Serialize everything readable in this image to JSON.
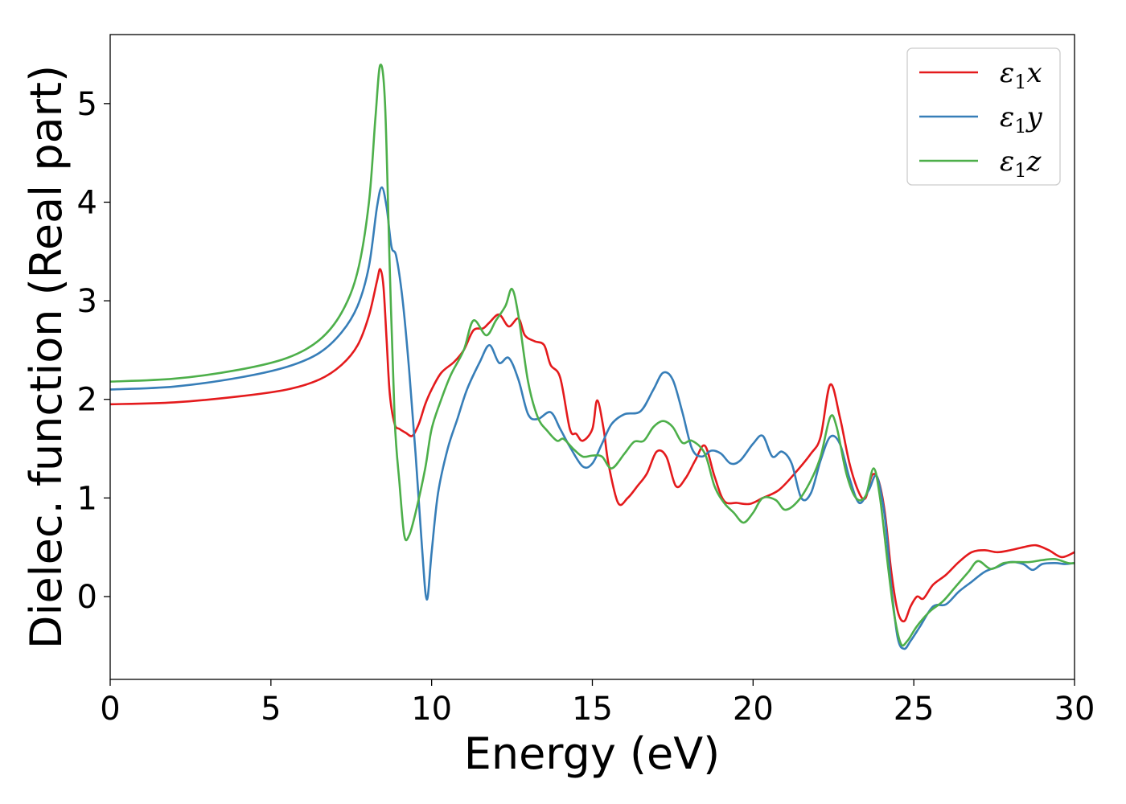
{
  "chart_data": {
    "type": "line",
    "title": "",
    "xlabel": "Energy (eV)",
    "ylabel": "Dielec. function (Real part)",
    "xlim": [
      0,
      30
    ],
    "ylim": [
      -0.84,
      5.7
    ],
    "xticks": [
      0,
      5,
      10,
      15,
      20,
      25,
      30
    ],
    "yticks": [
      0,
      1,
      2,
      3,
      4,
      5
    ],
    "grid": false,
    "legend_position": "top-right",
    "series": [
      {
        "name": "ε1x",
        "symbol": "ε",
        "subscript": "1",
        "suffix": "x",
        "color": "#e41a1c",
        "points": [
          [
            0,
            1.95
          ],
          [
            2,
            1.97
          ],
          [
            4,
            2.03
          ],
          [
            5.5,
            2.1
          ],
          [
            6.5,
            2.2
          ],
          [
            7.2,
            2.35
          ],
          [
            7.7,
            2.55
          ],
          [
            8.05,
            2.85
          ],
          [
            8.3,
            3.2
          ],
          [
            8.4,
            3.32
          ],
          [
            8.5,
            3.15
          ],
          [
            8.6,
            2.6
          ],
          [
            8.7,
            2.05
          ],
          [
            8.85,
            1.75
          ],
          [
            9.0,
            1.7
          ],
          [
            9.2,
            1.66
          ],
          [
            9.4,
            1.63
          ],
          [
            9.6,
            1.75
          ],
          [
            9.8,
            1.95
          ],
          [
            10.0,
            2.1
          ],
          [
            10.3,
            2.27
          ],
          [
            10.7,
            2.38
          ],
          [
            11.0,
            2.5
          ],
          [
            11.3,
            2.7
          ],
          [
            11.6,
            2.72
          ],
          [
            11.8,
            2.78
          ],
          [
            12.1,
            2.86
          ],
          [
            12.4,
            2.74
          ],
          [
            12.7,
            2.82
          ],
          [
            12.9,
            2.65
          ],
          [
            13.2,
            2.59
          ],
          [
            13.5,
            2.55
          ],
          [
            13.7,
            2.35
          ],
          [
            14.0,
            2.22
          ],
          [
            14.3,
            1.7
          ],
          [
            14.5,
            1.65
          ],
          [
            14.7,
            1.58
          ],
          [
            15.0,
            1.7
          ],
          [
            15.15,
            1.99
          ],
          [
            15.35,
            1.7
          ],
          [
            15.5,
            1.35
          ],
          [
            15.8,
            0.95
          ],
          [
            16.1,
            1.0
          ],
          [
            16.4,
            1.12
          ],
          [
            16.7,
            1.25
          ],
          [
            17.0,
            1.47
          ],
          [
            17.3,
            1.42
          ],
          [
            17.6,
            1.12
          ],
          [
            17.9,
            1.2
          ],
          [
            18.2,
            1.38
          ],
          [
            18.5,
            1.53
          ],
          [
            18.8,
            1.22
          ],
          [
            19.1,
            0.97
          ],
          [
            19.5,
            0.95
          ],
          [
            19.9,
            0.94
          ],
          [
            20.3,
            1.0
          ],
          [
            20.8,
            1.08
          ],
          [
            21.3,
            1.25
          ],
          [
            21.8,
            1.45
          ],
          [
            22.1,
            1.62
          ],
          [
            22.4,
            2.15
          ],
          [
            22.7,
            1.82
          ],
          [
            23.0,
            1.35
          ],
          [
            23.3,
            1.05
          ],
          [
            23.5,
            1.0
          ],
          [
            23.7,
            1.23
          ],
          [
            23.9,
            1.18
          ],
          [
            24.1,
            0.85
          ],
          [
            24.3,
            0.25
          ],
          [
            24.5,
            -0.15
          ],
          [
            24.7,
            -0.25
          ],
          [
            24.9,
            -0.1
          ],
          [
            25.1,
            0.0
          ],
          [
            25.3,
            -0.02
          ],
          [
            25.6,
            0.12
          ],
          [
            26.0,
            0.22
          ],
          [
            26.4,
            0.35
          ],
          [
            26.8,
            0.45
          ],
          [
            27.2,
            0.47
          ],
          [
            27.6,
            0.45
          ],
          [
            28.0,
            0.47
          ],
          [
            28.4,
            0.5
          ],
          [
            28.8,
            0.52
          ],
          [
            29.2,
            0.47
          ],
          [
            29.6,
            0.4
          ],
          [
            30,
            0.45
          ]
        ]
      },
      {
        "name": "ε1y",
        "symbol": "ε",
        "subscript": "1",
        "suffix": "y",
        "color": "#377eb8",
        "points": [
          [
            0,
            2.1
          ],
          [
            2,
            2.13
          ],
          [
            4,
            2.22
          ],
          [
            5.5,
            2.33
          ],
          [
            6.5,
            2.47
          ],
          [
            7.2,
            2.68
          ],
          [
            7.7,
            2.95
          ],
          [
            8.05,
            3.35
          ],
          [
            8.3,
            3.95
          ],
          [
            8.45,
            4.15
          ],
          [
            8.6,
            3.95
          ],
          [
            8.75,
            3.55
          ],
          [
            8.9,
            3.45
          ],
          [
            9.1,
            3.0
          ],
          [
            9.3,
            2.3
          ],
          [
            9.5,
            1.45
          ],
          [
            9.7,
            0.5
          ],
          [
            9.85,
            -0.03
          ],
          [
            10.0,
            0.45
          ],
          [
            10.2,
            1.05
          ],
          [
            10.5,
            1.5
          ],
          [
            10.8,
            1.8
          ],
          [
            11.1,
            2.1
          ],
          [
            11.5,
            2.38
          ],
          [
            11.8,
            2.55
          ],
          [
            12.1,
            2.37
          ],
          [
            12.4,
            2.42
          ],
          [
            12.7,
            2.2
          ],
          [
            13.0,
            1.85
          ],
          [
            13.3,
            1.8
          ],
          [
            13.7,
            1.87
          ],
          [
            14.0,
            1.7
          ],
          [
            14.3,
            1.52
          ],
          [
            14.7,
            1.32
          ],
          [
            15.0,
            1.35
          ],
          [
            15.3,
            1.55
          ],
          [
            15.6,
            1.75
          ],
          [
            16.0,
            1.85
          ],
          [
            16.5,
            1.88
          ],
          [
            16.9,
            2.1
          ],
          [
            17.2,
            2.27
          ],
          [
            17.5,
            2.2
          ],
          [
            17.8,
            1.87
          ],
          [
            18.1,
            1.5
          ],
          [
            18.4,
            1.42
          ],
          [
            18.7,
            1.48
          ],
          [
            19.0,
            1.45
          ],
          [
            19.3,
            1.35
          ],
          [
            19.6,
            1.38
          ],
          [
            20.0,
            1.55
          ],
          [
            20.3,
            1.63
          ],
          [
            20.6,
            1.42
          ],
          [
            20.9,
            1.47
          ],
          [
            21.2,
            1.35
          ],
          [
            21.5,
            1.0
          ],
          [
            21.8,
            1.05
          ],
          [
            22.1,
            1.38
          ],
          [
            22.4,
            1.62
          ],
          [
            22.7,
            1.55
          ],
          [
            23.0,
            1.2
          ],
          [
            23.3,
            0.95
          ],
          [
            23.6,
            1.08
          ],
          [
            23.85,
            1.22
          ],
          [
            24.1,
            0.8
          ],
          [
            24.3,
            0.1
          ],
          [
            24.5,
            -0.42
          ],
          [
            24.7,
            -0.53
          ],
          [
            24.9,
            -0.45
          ],
          [
            25.2,
            -0.3
          ],
          [
            25.6,
            -0.1
          ],
          [
            26.0,
            -0.08
          ],
          [
            26.4,
            0.05
          ],
          [
            26.8,
            0.15
          ],
          [
            27.2,
            0.25
          ],
          [
            27.6,
            0.3
          ],
          [
            28.0,
            0.35
          ],
          [
            28.4,
            0.33
          ],
          [
            28.7,
            0.27
          ],
          [
            29.0,
            0.33
          ],
          [
            29.4,
            0.34
          ],
          [
            29.7,
            0.33
          ],
          [
            30,
            0.34
          ]
        ]
      },
      {
        "name": "ε1z",
        "symbol": "ε",
        "subscript": "1",
        "suffix": "z",
        "color": "#4daf4a",
        "points": [
          [
            0,
            2.18
          ],
          [
            2,
            2.21
          ],
          [
            4,
            2.3
          ],
          [
            5.5,
            2.42
          ],
          [
            6.5,
            2.6
          ],
          [
            7.2,
            2.88
          ],
          [
            7.7,
            3.3
          ],
          [
            8.05,
            4.0
          ],
          [
            8.25,
            4.85
          ],
          [
            8.4,
            5.39
          ],
          [
            8.55,
            5.0
          ],
          [
            8.7,
            3.3
          ],
          [
            8.85,
            1.8
          ],
          [
            9.0,
            1.15
          ],
          [
            9.15,
            0.62
          ],
          [
            9.3,
            0.62
          ],
          [
            9.5,
            0.85
          ],
          [
            9.8,
            1.3
          ],
          [
            10.0,
            1.7
          ],
          [
            10.3,
            2.0
          ],
          [
            10.6,
            2.25
          ],
          [
            11.0,
            2.5
          ],
          [
            11.3,
            2.8
          ],
          [
            11.7,
            2.65
          ],
          [
            12.0,
            2.8
          ],
          [
            12.3,
            2.95
          ],
          [
            12.5,
            3.12
          ],
          [
            12.7,
            2.85
          ],
          [
            13.0,
            2.18
          ],
          [
            13.3,
            1.82
          ],
          [
            13.6,
            1.68
          ],
          [
            13.9,
            1.58
          ],
          [
            14.1,
            1.6
          ],
          [
            14.4,
            1.5
          ],
          [
            14.7,
            1.42
          ],
          [
            15.0,
            1.43
          ],
          [
            15.3,
            1.42
          ],
          [
            15.6,
            1.3
          ],
          [
            16.0,
            1.45
          ],
          [
            16.3,
            1.57
          ],
          [
            16.6,
            1.58
          ],
          [
            16.9,
            1.72
          ],
          [
            17.2,
            1.78
          ],
          [
            17.5,
            1.72
          ],
          [
            17.8,
            1.56
          ],
          [
            18.1,
            1.58
          ],
          [
            18.5,
            1.45
          ],
          [
            18.8,
            1.12
          ],
          [
            19.1,
            0.95
          ],
          [
            19.4,
            0.85
          ],
          [
            19.7,
            0.75
          ],
          [
            20.0,
            0.85
          ],
          [
            20.3,
            1.0
          ],
          [
            20.7,
            0.98
          ],
          [
            21.0,
            0.88
          ],
          [
            21.4,
            0.97
          ],
          [
            21.8,
            1.18
          ],
          [
            22.1,
            1.42
          ],
          [
            22.4,
            1.82
          ],
          [
            22.6,
            1.72
          ],
          [
            22.9,
            1.25
          ],
          [
            23.2,
            1.0
          ],
          [
            23.5,
            1.02
          ],
          [
            23.75,
            1.3
          ],
          [
            23.95,
            1.0
          ],
          [
            24.2,
            0.3
          ],
          [
            24.4,
            -0.2
          ],
          [
            24.6,
            -0.48
          ],
          [
            24.8,
            -0.45
          ],
          [
            25.1,
            -0.3
          ],
          [
            25.5,
            -0.15
          ],
          [
            25.9,
            -0.05
          ],
          [
            26.3,
            0.1
          ],
          [
            26.7,
            0.25
          ],
          [
            27.0,
            0.36
          ],
          [
            27.4,
            0.28
          ],
          [
            27.8,
            0.34
          ],
          [
            28.2,
            0.35
          ],
          [
            28.6,
            0.35
          ],
          [
            29.0,
            0.37
          ],
          [
            29.4,
            0.38
          ],
          [
            29.8,
            0.34
          ],
          [
            30,
            0.34
          ]
        ]
      }
    ]
  }
}
